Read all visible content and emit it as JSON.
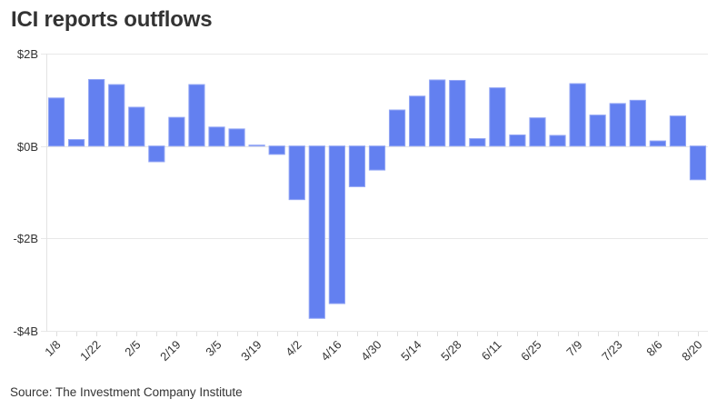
{
  "title": "ICI reports outflows",
  "source": "Source: The Investment Company Institute",
  "colors": {
    "bar": "#6380F0",
    "bar_stroke": "#93a6f5"
  },
  "chart_data": {
    "type": "bar",
    "title": "ICI reports outflows",
    "xlabel": "",
    "ylabel": "",
    "ylim": [
      -4,
      2
    ],
    "yticks": [
      2,
      0,
      -2,
      -4
    ],
    "ytick_labels": [
      "$2B",
      "$0B",
      "-$2B",
      "-$4B"
    ],
    "grid": true,
    "unit": "billions USD",
    "categories": [
      "1/8",
      "1/15",
      "1/22",
      "1/29",
      "2/5",
      "2/12",
      "2/19",
      "2/26",
      "3/5",
      "3/12",
      "3/19",
      "3/26",
      "4/2",
      "4/9",
      "4/16",
      "4/23",
      "4/30",
      "5/7",
      "5/14",
      "5/21",
      "5/28",
      "6/4",
      "6/11",
      "6/18",
      "6/25",
      "7/2",
      "7/9",
      "7/16",
      "7/23",
      "7/30",
      "8/6",
      "8/13",
      "8/20"
    ],
    "xtick_labels": [
      "1/8",
      "1/22",
      "2/5",
      "2/19",
      "3/5",
      "3/19",
      "4/2",
      "4/16",
      "4/30",
      "5/14",
      "5/28",
      "6/11",
      "6/25",
      "7/9",
      "7/23",
      "8/6",
      "8/20"
    ],
    "values": [
      1.04,
      0.14,
      1.44,
      1.33,
      0.84,
      -0.34,
      0.62,
      1.33,
      0.41,
      0.37,
      0.02,
      -0.18,
      -1.16,
      -3.73,
      -3.41,
      -0.88,
      -0.52,
      0.78,
      1.08,
      1.43,
      1.42,
      0.16,
      1.26,
      0.24,
      0.61,
      0.23,
      1.35,
      0.67,
      0.92,
      0.99,
      0.11,
      0.65,
      -0.73
    ]
  }
}
